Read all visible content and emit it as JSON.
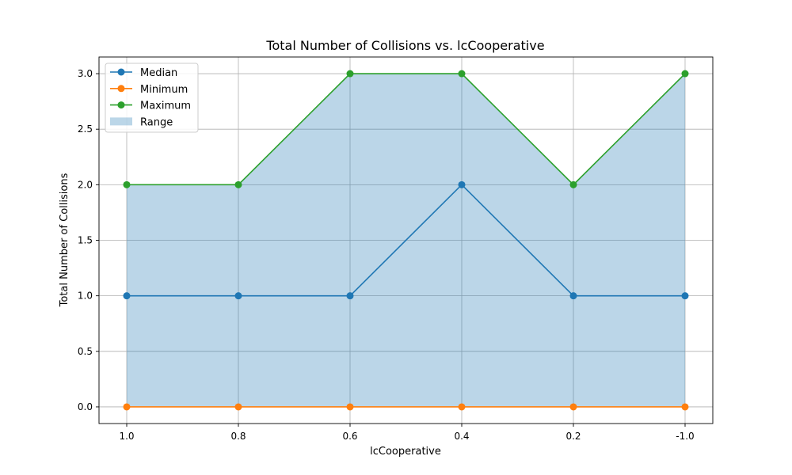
{
  "chart_data": {
    "type": "line",
    "title": "Total Number of Collisions vs. lcCooperative",
    "xlabel": "lcCooperative",
    "ylabel": "Total Number of Collisions",
    "categories": [
      "1.0",
      "0.8",
      "0.6",
      "0.4",
      "0.2",
      "-1.0"
    ],
    "series": [
      {
        "name": "Median",
        "values": [
          1,
          1,
          1,
          2,
          1,
          1
        ],
        "color": "#1f77b4"
      },
      {
        "name": "Minimum",
        "values": [
          0,
          0,
          0,
          0,
          0,
          0
        ],
        "color": "#ff7f0e"
      },
      {
        "name": "Maximum",
        "values": [
          2,
          2,
          3,
          3,
          2,
          3
        ],
        "color": "#2ca02c"
      }
    ],
    "range": {
      "name": "Range",
      "color": "#1f77b4",
      "opacity": 0.3
    },
    "ylim": [
      -0.15,
      3.15
    ],
    "yticks": [
      "0.0",
      "0.5",
      "1.0",
      "1.5",
      "2.0",
      "2.5",
      "3.0"
    ],
    "grid": true,
    "legend": "top-left"
  }
}
